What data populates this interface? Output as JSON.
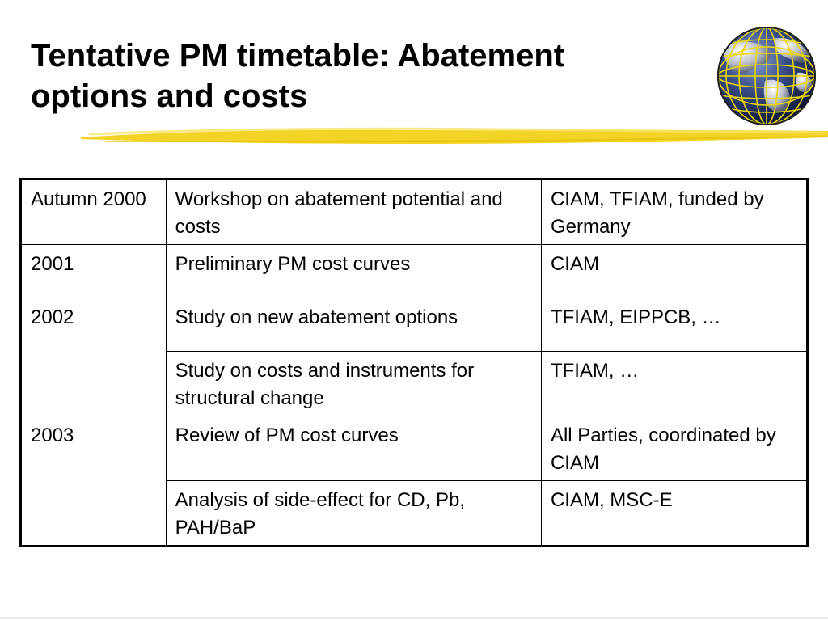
{
  "slide": {
    "title_line1": "Tentative PM timetable: Abatement",
    "title_line2": "options and costs"
  },
  "table": {
    "rows": [
      {
        "period": "Autumn 2000",
        "activity": "Workshop on abatement potential and costs",
        "responsible": "CIAM, TFIAM, funded by Germany"
      },
      {
        "period": "2001",
        "activity": "Preliminary PM cost curves",
        "responsible": "CIAM"
      },
      {
        "period": "2002",
        "activity": "Study on new abatement options",
        "responsible": "TFIAM, EIPPCB, …"
      },
      {
        "period": "",
        "activity": "Study on costs and instruments for structural change",
        "responsible": "TFIAM, …"
      },
      {
        "period": "2003",
        "activity": "Review of PM cost curves",
        "responsible": "All Parties, coordinated by CIAM"
      },
      {
        "period": "",
        "activity": "Analysis of side-effect for CD, Pb, PAH/BaP",
        "responsible": "CIAM, MSC-E"
      }
    ]
  },
  "decor": {
    "globe_icon": "globe-icon",
    "accent_color": "#f2d21a",
    "globe_sea_color": "#2a3a6e",
    "globe_grid_color": "#e8d800"
  }
}
